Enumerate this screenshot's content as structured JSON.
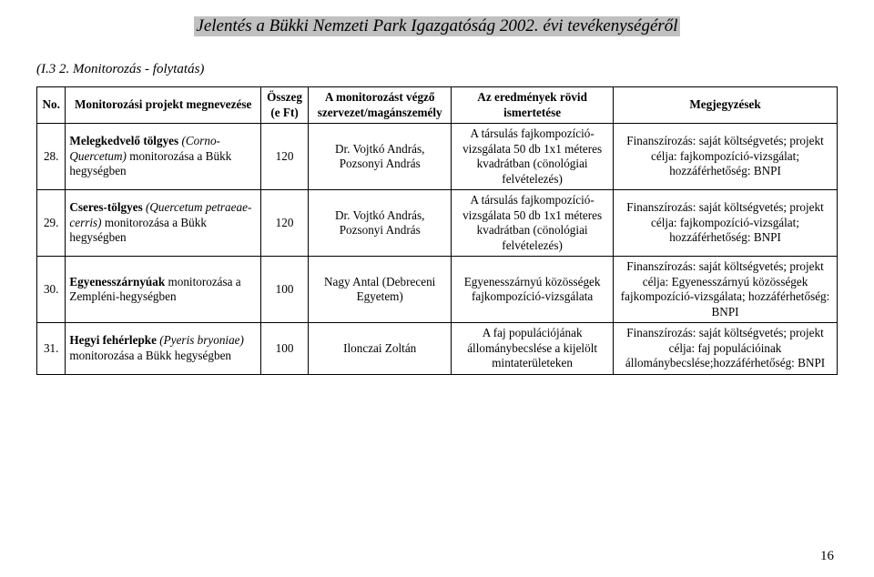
{
  "doc_title": "Jelentés a Bükki Nemzeti Park Igazgatóság 2002. évi tevékenységéről",
  "section_note": "(I.3 2. Monitorozás - folytatás)",
  "page_number": "16",
  "table": {
    "columns": {
      "no": "No.",
      "name": "Monitorozási projekt megnevezése",
      "sum": "Összeg (e Ft)",
      "org": "A monitorozást végző szervezet/magánszemély",
      "res": "Az eredmények rövid ismertetése",
      "note": "Megjegyzések"
    },
    "rows": [
      {
        "no": "28.",
        "name_pre": "Melegkedvelő tölgyes ",
        "name_italic": "(Corno-Quercetum)",
        "name_post": " monitorozása a Bükk hegységben",
        "sum": "120",
        "org": "Dr. Vojtkó András, Pozsonyi András",
        "res": "A társulás fajkompozíció-vizsgálata 50 db 1x1 méteres kvadrátban (cönológiai felvételezés)",
        "note": "Finanszírozás: saját költségvetés; projekt célja: fajkompozíció-vizsgálat; hozzáférhetőség: BNPI"
      },
      {
        "no": "29.",
        "name_pre": "Cseres-tölgyes ",
        "name_italic": "(Quercetum petraeae-cerris)",
        "name_post": " monitorozása a Bükk hegységben",
        "sum": "120",
        "org": "Dr. Vojtkó András, Pozsonyi András",
        "res": "A társulás fajkompozíció-vizsgálata 50 db 1x1 méteres kvadrátban (cönológiai felvételezés)",
        "note": "Finanszírozás: saját költségvetés; projekt célja: fajkompozíció-vizsgálat; hozzáférhetőség: BNPI"
      },
      {
        "no": "30.",
        "name_pre": "Egyenesszárnyúak ",
        "name_italic": "",
        "name_post": "monitorozása a Zempléni-hegységben",
        "sum": "100",
        "org": "Nagy Antal (Debreceni Egyetem)",
        "res": "Egyenesszárnyú közösségek fajkompozíció-vizsgálata",
        "note": "Finanszírozás: saját költségvetés; projekt célja: Egyenesszárnyú közösségek fajkompozíció-vizsgálata; hozzáférhetőség: BNPI"
      },
      {
        "no": "31.",
        "name_pre": "Hegyi fehérlepke ",
        "name_italic": "(Pyeris bryoniae)",
        "name_post": " monitorozása a Bükk hegységben",
        "sum": "100",
        "org": "Ilonczai Zoltán",
        "res": "A faj populációjának állománybecslése a kijelölt mintaterületeken",
        "note": "Finanszírozás: saját költségvetés; projekt célja: faj populációinak állománybecslése;hozzáférhetőség: BNPI"
      }
    ]
  }
}
